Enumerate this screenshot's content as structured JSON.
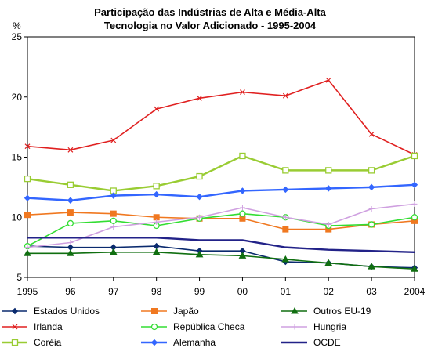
{
  "chart_data": {
    "type": "line",
    "title_line1": "Participação das Indústrias de Alta e Média-Alta",
    "title_line2": "Tecnologia no Valor Adicionado - 1995-2004",
    "ylabel": "%",
    "xlabel": "",
    "categories": [
      "1995",
      "96",
      "97",
      "98",
      "99",
      "00",
      "01",
      "02",
      "03",
      "2004"
    ],
    "ylim": [
      5,
      25
    ],
    "yticks": [
      "5",
      "10",
      "15",
      "20",
      "25"
    ],
    "grid": false,
    "legend_position": "bottom",
    "series": [
      {
        "name": "Estados Unidos",
        "color": "#0a2a6e",
        "marker": "diamond",
        "values": [
          7.6,
          7.5,
          7.5,
          7.6,
          7.2,
          7.2,
          6.3,
          6.2,
          5.9,
          5.8
        ]
      },
      {
        "name": "Japão",
        "color": "#f07820",
        "marker": "square",
        "values": [
          10.2,
          10.4,
          10.3,
          10.0,
          9.9,
          9.9,
          9.0,
          9.0,
          9.4,
          9.7
        ]
      },
      {
        "name": "Outros EU-19",
        "color": "#106f10",
        "marker": "triangle",
        "values": [
          7.0,
          7.0,
          7.1,
          7.1,
          6.9,
          6.8,
          6.5,
          6.2,
          5.9,
          5.7
        ]
      },
      {
        "name": "Irlanda",
        "color": "#e02020",
        "marker": "x",
        "values": [
          15.9,
          15.6,
          16.4,
          19.0,
          19.9,
          20.4,
          20.1,
          21.4,
          16.9,
          15.2
        ]
      },
      {
        "name": "República Checa",
        "color": "#33dd33",
        "marker": "circle",
        "values": [
          7.6,
          9.5,
          9.7,
          9.3,
          9.9,
          10.3,
          10.0,
          9.3,
          9.4,
          10.0
        ]
      },
      {
        "name": "Hungria",
        "color": "#cfa0e0",
        "marker": "plus",
        "values": [
          7.5,
          7.9,
          9.2,
          9.6,
          10.0,
          10.8,
          10.0,
          9.4,
          10.7,
          11.1
        ]
      },
      {
        "name": "Coréia",
        "color": "#99cc33",
        "marker": "square-open",
        "values": [
          13.2,
          12.7,
          12.2,
          12.6,
          13.4,
          15.1,
          13.9,
          13.9,
          13.9,
          15.1
        ]
      },
      {
        "name": "Alemanha",
        "color": "#3366ff",
        "marker": "diamond",
        "values": [
          11.6,
          11.4,
          11.8,
          11.9,
          11.7,
          12.2,
          12.3,
          12.4,
          12.5,
          12.7
        ]
      },
      {
        "name": "OCDE",
        "color": "#222288",
        "marker": "none",
        "values": [
          8.3,
          8.3,
          8.3,
          8.3,
          8.1,
          8.1,
          7.5,
          7.3,
          7.2,
          7.1
        ]
      }
    ]
  }
}
